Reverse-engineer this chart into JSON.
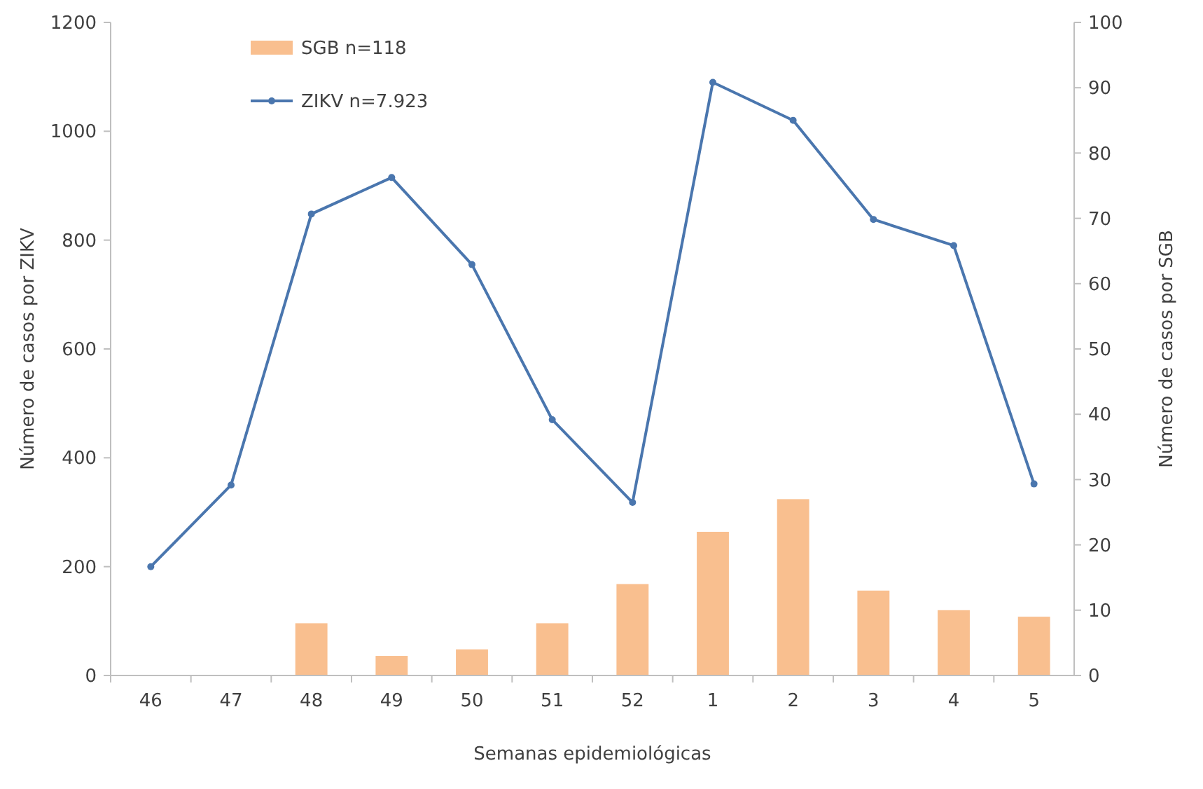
{
  "chart_data": {
    "type": "bar",
    "xlabel": "Semanas epidemiológicas",
    "ylabel": "Número de casos por ZIKV",
    "y2label": "Número de casos por SGB",
    "categories": [
      "46",
      "47",
      "48",
      "49",
      "50",
      "51",
      "52",
      "1",
      "2",
      "3",
      "4",
      "5"
    ],
    "series": [
      {
        "name": "SGB n=118",
        "axis": "y2",
        "color": "#f9bf8f",
        "values": [
          null,
          null,
          8,
          3,
          4,
          8,
          14,
          22,
          27,
          13,
          10,
          9
        ]
      },
      {
        "name": "ZIKV n=7.923",
        "type": "line",
        "color": "#4a76ae",
        "values": [
          200,
          350,
          848,
          915,
          755,
          470,
          318,
          1090,
          1020,
          838,
          790,
          352
        ]
      }
    ],
    "ylim": [
      0,
      1200
    ],
    "yticks": [
      0,
      200,
      400,
      600,
      800,
      1000,
      1200
    ],
    "y2lim": [
      0,
      100
    ],
    "y2ticks": [
      0,
      10,
      20,
      30,
      40,
      50,
      60,
      70,
      80,
      90,
      100
    ],
    "legend": "top left",
    "marker": "circle",
    "line_style": "solid"
  }
}
